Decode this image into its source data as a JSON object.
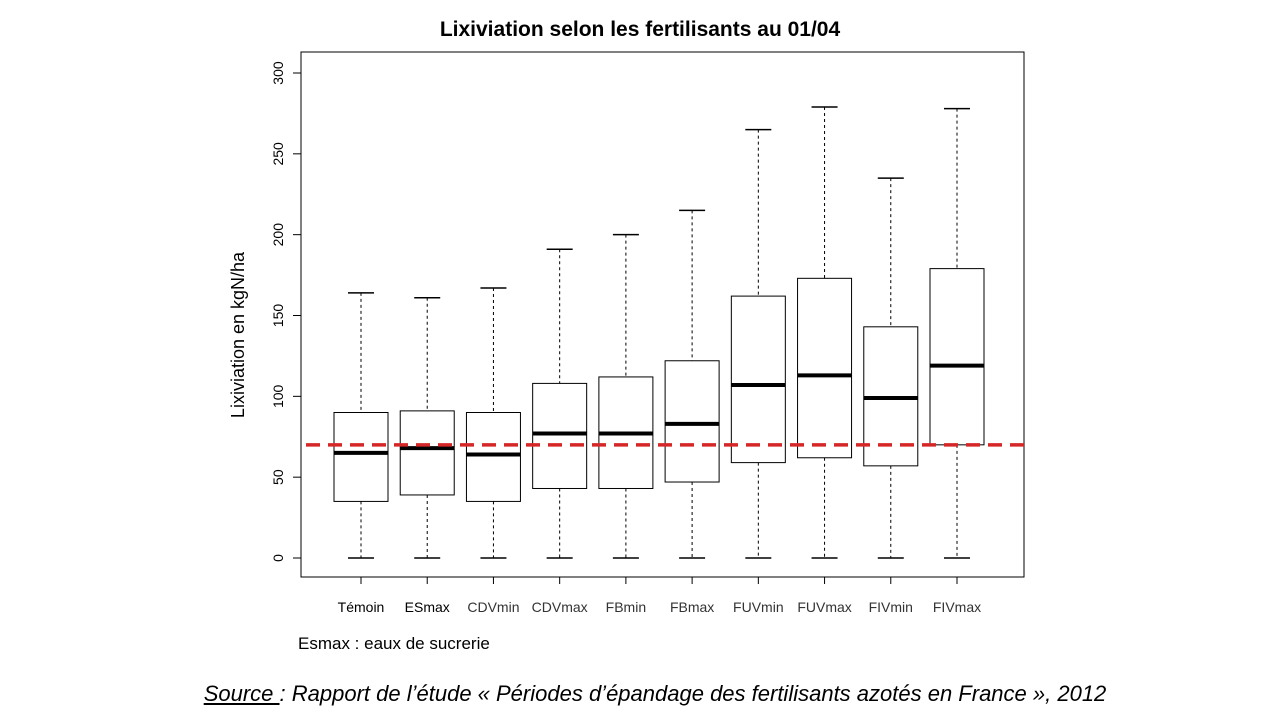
{
  "page": {
    "title": "Lixiviation selon les fertilisants au 01/04",
    "note": "Esmax : eaux de sucrerie",
    "source_label": "Source ",
    "source_text": ": Rapport de l’étude « Périodes d’épandage des fertilisants azotés en France », 2012"
  },
  "chart_data": {
    "type": "boxplot",
    "title": "Lixiviation selon les fertilisants au 01/04",
    "ylabel": "Lixiviation en kgN/ha",
    "xlabel": "",
    "ylim": [
      0,
      300
    ],
    "yticks": [
      0,
      50,
      100,
      150,
      200,
      250,
      300
    ],
    "grid": false,
    "categories": [
      "Témoin",
      "ESmax",
      "CDVmin",
      "CDVmax",
      "FBmin",
      "FBmax",
      "FUVmin",
      "FUVmax",
      "FIVmin",
      "FIVmax"
    ],
    "boxes": [
      {
        "category": "Témoin",
        "min": 0,
        "q1": 35,
        "median": 65,
        "q3": 90,
        "max": 164
      },
      {
        "category": "ESmax",
        "min": 0,
        "q1": 39,
        "median": 68,
        "q3": 91,
        "max": 161
      },
      {
        "category": "CDVmin",
        "min": 0,
        "q1": 35,
        "median": 64,
        "q3": 90,
        "max": 167
      },
      {
        "category": "CDVmax",
        "min": 0,
        "q1": 43,
        "median": 77,
        "q3": 108,
        "max": 191
      },
      {
        "category": "FBmin",
        "min": 0,
        "q1": 43,
        "median": 77,
        "q3": 112,
        "max": 200
      },
      {
        "category": "FBmax",
        "min": 0,
        "q1": 47,
        "median": 83,
        "q3": 122,
        "max": 215
      },
      {
        "category": "FUVmin",
        "min": 0,
        "q1": 59,
        "median": 107,
        "q3": 162,
        "max": 265
      },
      {
        "category": "FUVmax",
        "min": 0,
        "q1": 62,
        "median": 113,
        "q3": 173,
        "max": 279
      },
      {
        "category": "FIVmin",
        "min": 0,
        "q1": 57,
        "median": 99,
        "q3": 143,
        "max": 235
      },
      {
        "category": "FIVmax",
        "min": 0,
        "q1": 70,
        "median": 119,
        "q3": 179,
        "max": 278
      }
    ],
    "reference_line": {
      "value": 70,
      "style": "dashed",
      "color": "#d62728"
    },
    "colors": {
      "box": "#000000",
      "median": "#000000",
      "reference": "#d62728"
    }
  }
}
